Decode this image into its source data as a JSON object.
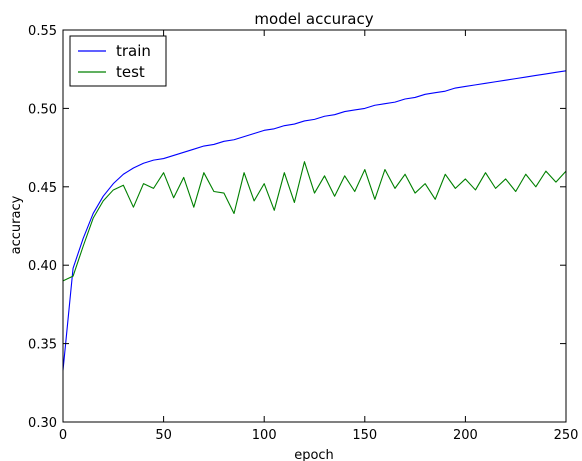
{
  "chart_data": {
    "type": "line",
    "title": "model accuracy",
    "xlabel": "epoch",
    "ylabel": "accuracy",
    "xlim": [
      0,
      250
    ],
    "ylim": [
      0.3,
      0.55
    ],
    "xticks": [
      "0",
      "50",
      "100",
      "150",
      "200",
      "250"
    ],
    "yticks": [
      "0.30",
      "0.35",
      "0.40",
      "0.45",
      "0.50",
      "0.55"
    ],
    "grid": false,
    "legend": "top-left",
    "x": [
      0,
      5,
      10,
      15,
      20,
      25,
      30,
      35,
      40,
      45,
      50,
      55,
      60,
      65,
      70,
      75,
      80,
      85,
      90,
      95,
      100,
      105,
      110,
      115,
      120,
      125,
      130,
      135,
      140,
      145,
      150,
      155,
      160,
      165,
      170,
      175,
      180,
      185,
      190,
      195,
      200,
      205,
      210,
      215,
      220,
      225,
      230,
      235,
      240,
      245,
      250
    ],
    "series": [
      {
        "name": "train",
        "color": "#0000ff",
        "values": [
          0.333,
          0.398,
          0.417,
          0.433,
          0.444,
          0.452,
          0.458,
          0.462,
          0.465,
          0.467,
          0.468,
          0.47,
          0.472,
          0.474,
          0.476,
          0.477,
          0.479,
          0.48,
          0.482,
          0.484,
          0.486,
          0.487,
          0.489,
          0.49,
          0.492,
          0.493,
          0.495,
          0.496,
          0.498,
          0.499,
          0.5,
          0.502,
          0.503,
          0.504,
          0.506,
          0.507,
          0.509,
          0.51,
          0.511,
          0.513,
          0.514,
          0.515,
          0.516,
          0.517,
          0.518,
          0.519,
          0.52,
          0.521,
          0.522,
          0.523,
          0.524
        ]
      },
      {
        "name": "test",
        "color": "#008000",
        "values": [
          0.39,
          0.393,
          0.412,
          0.43,
          0.441,
          0.448,
          0.451,
          0.437,
          0.452,
          0.449,
          0.459,
          0.443,
          0.456,
          0.437,
          0.459,
          0.447,
          0.446,
          0.433,
          0.459,
          0.441,
          0.452,
          0.435,
          0.459,
          0.44,
          0.466,
          0.446,
          0.457,
          0.444,
          0.457,
          0.447,
          0.461,
          0.442,
          0.461,
          0.449,
          0.458,
          0.446,
          0.452,
          0.442,
          0.458,
          0.449,
          0.455,
          0.448,
          0.459,
          0.449,
          0.455,
          0.447,
          0.458,
          0.45,
          0.46,
          0.453,
          0.46
        ]
      }
    ]
  }
}
